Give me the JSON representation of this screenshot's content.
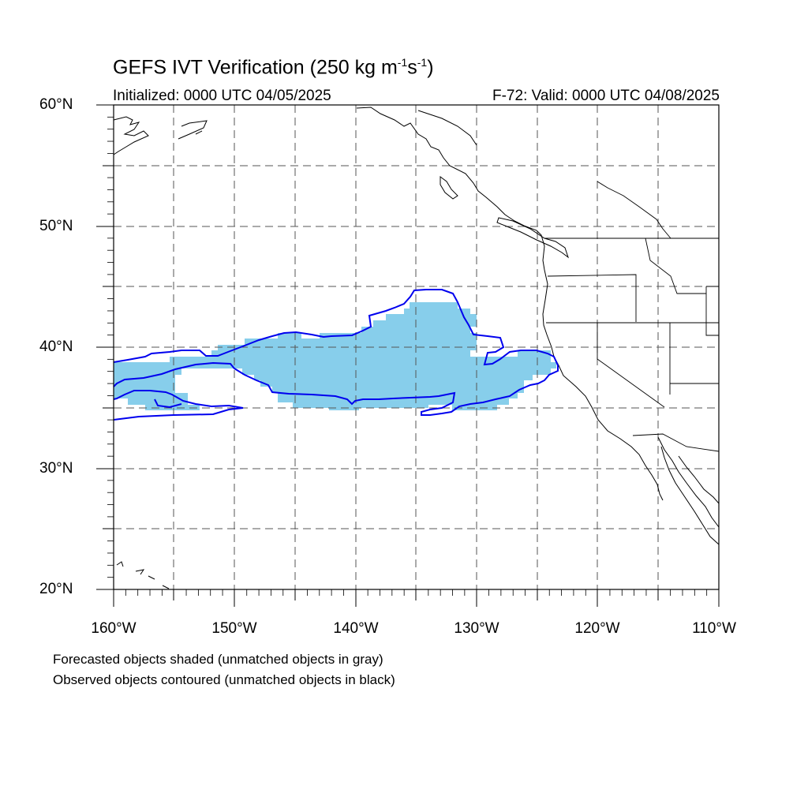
{
  "header": {
    "title_main": "GEFS IVT Verification (250 kg m",
    "title_exp1": "-1",
    "title_mid": "s",
    "title_exp2": "-1",
    "title_end": ")",
    "initialized": "Initialized: 0000 UTC 04/05/2025",
    "valid": "F-72: Valid: 0000 UTC 04/08/2025"
  },
  "axes": {
    "lat_labels": [
      "60°N",
      "50°N",
      "40°N",
      "30°N",
      "20°N"
    ],
    "lon_labels": [
      "160°W",
      "150°W",
      "140°W",
      "130°W",
      "120°W",
      "110°W"
    ],
    "lat_range": [
      20,
      60
    ],
    "lon_range": [
      -160,
      -110
    ],
    "grid": "dashed"
  },
  "legend_notes": [
    "Forecasted objects shaded (unmatched objects in gray)",
    "Observed objects contoured (unmatched objects in black)"
  ],
  "colors": {
    "forecast_fill": "#87ceeb",
    "observed_contour": "#0000ee",
    "coastline": "#000000",
    "grid": "#555555"
  }
}
